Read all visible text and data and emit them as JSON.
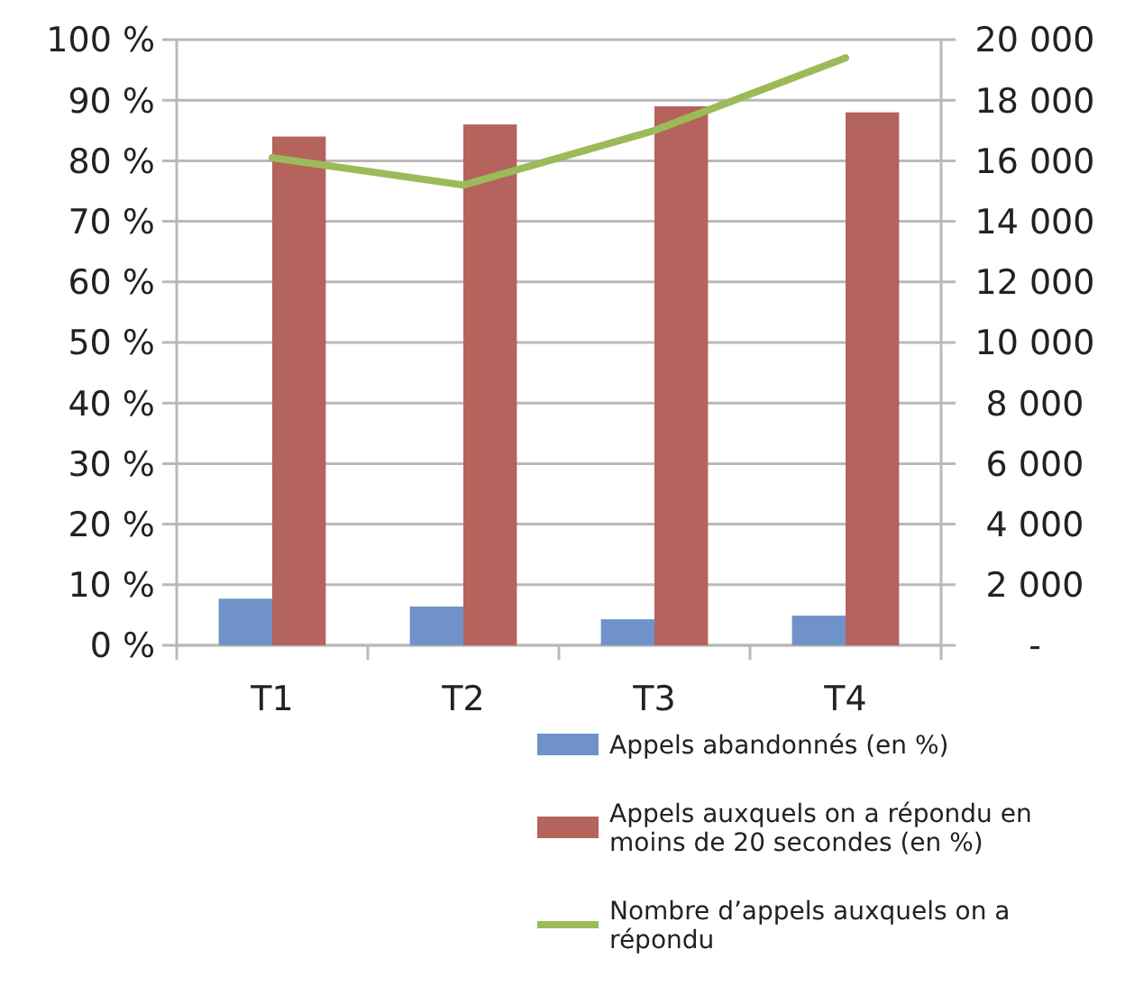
{
  "chart_data": {
    "type": "bar",
    "categories": [
      "T1",
      "T2",
      "T3",
      "T4"
    ],
    "series": [
      {
        "name": "Appels abandonnés (en %)",
        "color": "#6f93c8",
        "values": [
          7.7,
          6.4,
          4.3,
          4.9
        ]
      },
      {
        "name": "Appels auxquels on a répondu en moins de 20 secondes (en %)",
        "color": "#b5635d",
        "values": [
          84,
          86,
          89,
          88
        ]
      },
      {
        "name": "Nombre d’appels auxquels on a répondu",
        "type": "line",
        "axis": "y2",
        "color": "#9bbb59",
        "values": [
          16100,
          15200,
          17000,
          19400
        ]
      }
    ],
    "ylim": [
      0,
      100
    ],
    "yticks": [
      {
        "value": 0,
        "label": "0 %"
      },
      {
        "value": 10,
        "label": "10 %"
      },
      {
        "value": 20,
        "label": "20 %"
      },
      {
        "value": 30,
        "label": "30 %"
      },
      {
        "value": 40,
        "label": "40 %"
      },
      {
        "value": 50,
        "label": "50 %"
      },
      {
        "value": 60,
        "label": "60 %"
      },
      {
        "value": 70,
        "label": "70 %"
      },
      {
        "value": 80,
        "label": "80 %"
      },
      {
        "value": 90,
        "label": "90 %"
      },
      {
        "value": 100,
        "label": "100 %"
      }
    ],
    "y2lim": [
      0,
      20000
    ],
    "y2ticks": [
      {
        "value": 0,
        "label": "-"
      },
      {
        "value": 2000,
        "label": "2 000"
      },
      {
        "value": 4000,
        "label": "4 000"
      },
      {
        "value": 6000,
        "label": "6 000"
      },
      {
        "value": 8000,
        "label": "8 000"
      },
      {
        "value": 10000,
        "label": "10 000"
      },
      {
        "value": 12000,
        "label": "12 000"
      },
      {
        "value": 14000,
        "label": "14 000"
      },
      {
        "value": 16000,
        "label": "16 000"
      },
      {
        "value": 18000,
        "label": "18 000"
      },
      {
        "value": 20000,
        "label": "20 000"
      }
    ],
    "grid": "y",
    "legend": "bottom right",
    "marker": "none",
    "line_style": "solid"
  }
}
